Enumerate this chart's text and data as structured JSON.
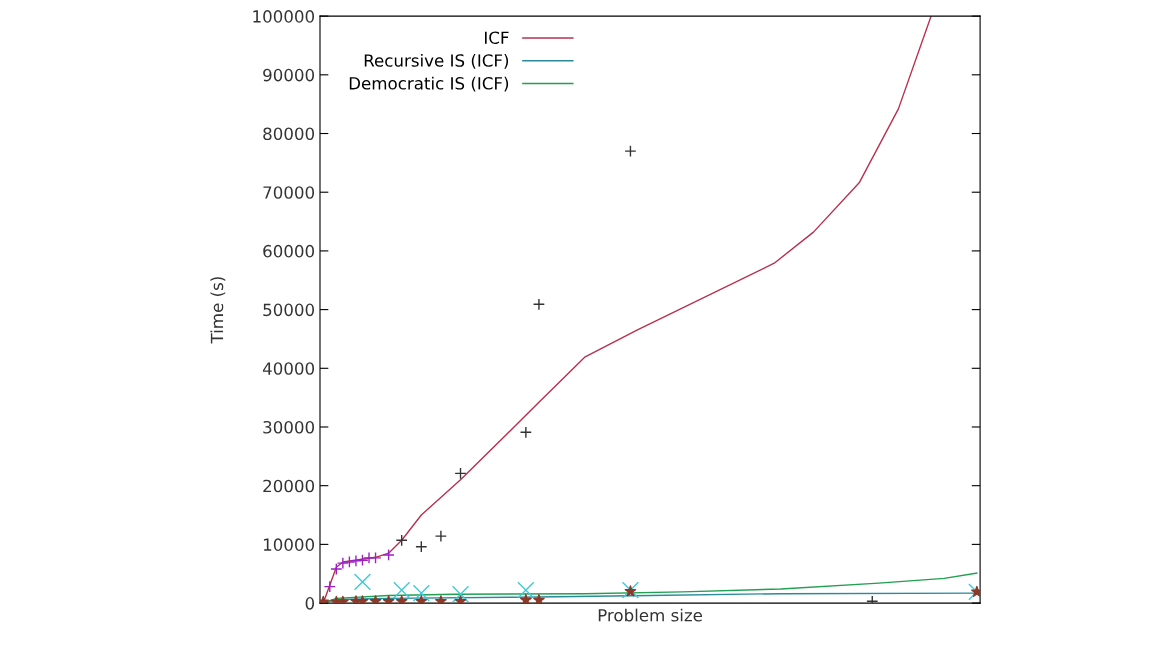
{
  "chart_data": {
    "type": "line",
    "xlabel": "Problem size",
    "ylabel": "Time (s)",
    "categories": [
      null,
      null,
      null,
      null,
      null,
      null,
      null,
      null,
      null,
      null,
      null,
      null,
      null,
      null,
      null,
      null,
      null,
      null,
      null,
      null,
      null,
      null,
      null,
      null,
      null,
      null,
      null,
      null,
      null,
      null,
      null,
      null,
      null,
      null,
      null,
      null,
      null,
      null,
      null,
      null,
      null,
      null,
      null,
      null,
      null,
      null,
      null,
      null,
      null,
      null,
      null,
      null,
      null,
      null,
      null,
      null,
      null,
      null,
      null,
      null,
      null,
      null,
      null,
      null,
      null,
      null,
      null,
      null,
      null,
      null,
      null,
      null,
      null,
      null,
      null,
      null,
      null,
      null,
      null,
      null,
      null,
      null,
      null,
      null,
      null,
      null,
      null,
      null,
      null,
      null,
      null,
      null,
      null,
      null,
      null,
      null,
      null,
      null,
      null,
      null,
      null
    ],
    "ylim": [
      0,
      100000
    ],
    "yticks": [
      0,
      10000,
      20000,
      30000,
      40000,
      50000,
      60000,
      70000,
      80000,
      90000,
      100000
    ],
    "tick_labels": "y",
    "legend": "top left",
    "series": [
      {
        "name": "ICF",
        "color": "#b8304e",
        "values": [
          0,
          null,
          6100,
          7000,
          null,
          null,
          null,
          null,
          7800,
          null,
          8500,
          null,
          10700,
          null,
          null,
          15000,
          null,
          null,
          null,
          null,
          null,
          21000,
          null,
          null,
          null,
          null,
          null,
          null,
          null,
          null,
          null,
          null,
          null,
          34200,
          null,
          null,
          null,
          null,
          null,
          null,
          41900,
          null,
          null,
          null,
          null,
          null,
          null,
          null,
          46500,
          null,
          null,
          null,
          null,
          null,
          null,
          null,
          null,
          null,
          null,
          null,
          null,
          null,
          null,
          null,
          null,
          null,
          null,
          null,
          null,
          57900,
          null,
          null,
          null,
          null,
          null,
          63200,
          null,
          null,
          null,
          null,
          null,
          null,
          71600,
          null,
          null,
          null,
          null,
          null,
          84200,
          null,
          null,
          null,
          null,
          100000,
          null,
          null,
          null,
          null,
          null,
          null,
          null
        ]
      },
      {
        "name": "Recursive IS (ICF)",
        "color": "#2a8a9a",
        "values": [
          0,
          null,
          600,
          null,
          null,
          null,
          null,
          null,
          null,
          null,
          800,
          null,
          null,
          null,
          null,
          null,
          null,
          null,
          null,
          null,
          null,
          null,
          null,
          null,
          null,
          null,
          null,
          null,
          null,
          null,
          1000,
          null,
          null,
          null,
          null,
          null,
          null,
          null,
          null,
          null,
          null,
          null,
          null,
          null,
          null,
          null,
          null,
          null,
          null,
          null,
          1300,
          null,
          null,
          null,
          null,
          null,
          null,
          null,
          null,
          null,
          null,
          null,
          null,
          null,
          null,
          null,
          null,
          null,
          null,
          null,
          1600,
          null,
          null,
          null,
          null,
          null,
          null,
          null,
          null,
          null,
          null,
          null,
          null,
          null,
          null,
          null,
          null,
          null,
          null,
          null,
          null,
          null,
          null,
          null,
          null,
          null,
          null,
          null,
          null,
          null,
          1700
        ]
      },
      {
        "name": "Democratic IS (ICF)",
        "color": "#20a050",
        "values": [
          0,
          null,
          800,
          null,
          null,
          null,
          null,
          null,
          null,
          null,
          1300,
          null,
          null,
          null,
          null,
          null,
          null,
          null,
          null,
          null,
          1500,
          null,
          null,
          null,
          null,
          null,
          null,
          null,
          null,
          null,
          null,
          null,
          null,
          null,
          null,
          null,
          null,
          null,
          null,
          null,
          1600,
          null,
          null,
          null,
          null,
          null,
          null,
          null,
          null,
          null,
          null,
          null,
          null,
          null,
          null,
          1900,
          null,
          null,
          null,
          null,
          null,
          null,
          null,
          null,
          null,
          null,
          null,
          null,
          null,
          null,
          2400,
          null,
          null,
          null,
          null,
          null,
          null,
          null,
          null,
          null,
          null,
          null,
          null,
          null,
          null,
          3400,
          null,
          null,
          null,
          null,
          null,
          null,
          null,
          null,
          null,
          4200,
          null,
          null,
          null,
          null,
          5100
        ]
      },
      {
        "type": "scatter",
        "color": "#9a20c8",
        "marker": "cross",
        "values": [
          null,
          2800,
          5800,
          6800,
          7000,
          7200,
          7300,
          7700,
          7700,
          null,
          8200,
          null,
          null,
          null,
          null,
          null,
          null,
          null,
          null,
          null,
          null,
          null,
          null,
          null,
          null,
          null,
          null,
          null,
          null,
          null,
          null,
          null,
          null,
          null,
          null,
          null,
          null,
          null,
          null,
          null,
          null,
          null,
          null,
          null,
          null,
          null,
          null,
          null,
          null,
          null,
          null,
          null,
          null,
          null,
          null,
          null,
          null,
          null,
          null,
          null,
          null,
          null,
          null,
          null,
          null,
          null,
          null,
          null,
          null,
          null,
          null,
          null,
          null,
          null,
          null,
          null,
          null,
          null,
          null,
          null,
          null,
          null,
          null,
          null,
          null,
          null,
          null,
          null,
          null,
          null,
          null,
          null,
          null,
          null,
          null,
          null,
          null,
          null,
          null,
          null,
          null
        ]
      },
      {
        "type": "scatter",
        "color": "#333333",
        "marker": "cross",
        "values": [
          null,
          null,
          null,
          null,
          null,
          null,
          null,
          null,
          null,
          null,
          null,
          null,
          10700,
          null,
          null,
          9600,
          null,
          null,
          11400,
          null,
          null,
          22100,
          null,
          null,
          null,
          null,
          null,
          null,
          null,
          null,
          null,
          29100,
          null,
          50900,
          null,
          null,
          null,
          null,
          null,
          null,
          null,
          null,
          null,
          null,
          null,
          null,
          null,
          77000,
          null,
          null,
          null,
          null,
          null,
          null,
          null,
          null,
          null,
          null,
          null,
          null,
          null,
          null,
          null,
          null,
          null,
          null,
          null,
          null,
          null,
          null,
          null,
          null,
          null,
          null,
          null,
          null,
          null,
          null,
          null,
          null,
          null,
          null,
          null,
          null,
          300,
          null,
          null,
          null,
          null,
          null,
          null,
          null,
          null,
          null,
          null,
          null,
          null,
          null,
          null,
          null,
          null
        ]
      },
      {
        "type": "scatter",
        "color": "#40c8d8",
        "marker": "x",
        "values": [
          null,
          null,
          null,
          null,
          null,
          null,
          3600,
          null,
          null,
          null,
          null,
          null,
          2200,
          null,
          null,
          1700,
          null,
          null,
          null,
          null,
          null,
          1500,
          null,
          null,
          null,
          null,
          null,
          null,
          null,
          null,
          null,
          2200,
          null,
          null,
          null,
          null,
          null,
          null,
          null,
          null,
          null,
          null,
          null,
          null,
          null,
          null,
          null,
          2200,
          null,
          null,
          null,
          null,
          null,
          null,
          null,
          null,
          null,
          null,
          null,
          null,
          null,
          null,
          null,
          null,
          null,
          null,
          null,
          null,
          null,
          null,
          null,
          null,
          null,
          null,
          null,
          null,
          null,
          null,
          null,
          null,
          null,
          null,
          null,
          null,
          null,
          null,
          null,
          null,
          null,
          null,
          null,
          null,
          null,
          null,
          null,
          null,
          null,
          null,
          null,
          null,
          1900
        ]
      },
      {
        "type": "scatter",
        "color": "#8b3a2a",
        "marker": "star",
        "values": [
          200,
          null,
          200,
          200,
          null,
          300,
          300,
          null,
          300,
          null,
          300,
          null,
          300,
          null,
          null,
          300,
          null,
          null,
          300,
          null,
          null,
          300,
          null,
          null,
          null,
          null,
          null,
          null,
          null,
          null,
          null,
          500,
          null,
          500,
          null,
          null,
          null,
          null,
          null,
          null,
          null,
          null,
          null,
          null,
          null,
          null,
          null,
          2000,
          null,
          null,
          null,
          null,
          null,
          null,
          null,
          null,
          null,
          null,
          null,
          null,
          null,
          null,
          null,
          null,
          null,
          null,
          null,
          null,
          null,
          null,
          null,
          null,
          null,
          null,
          null,
          null,
          null,
          null,
          null,
          null,
          null,
          null,
          null,
          null,
          null,
          null,
          null,
          null,
          null,
          null,
          null,
          null,
          null,
          null,
          null,
          null,
          null,
          null,
          null,
          null,
          1900
        ]
      }
    ]
  }
}
